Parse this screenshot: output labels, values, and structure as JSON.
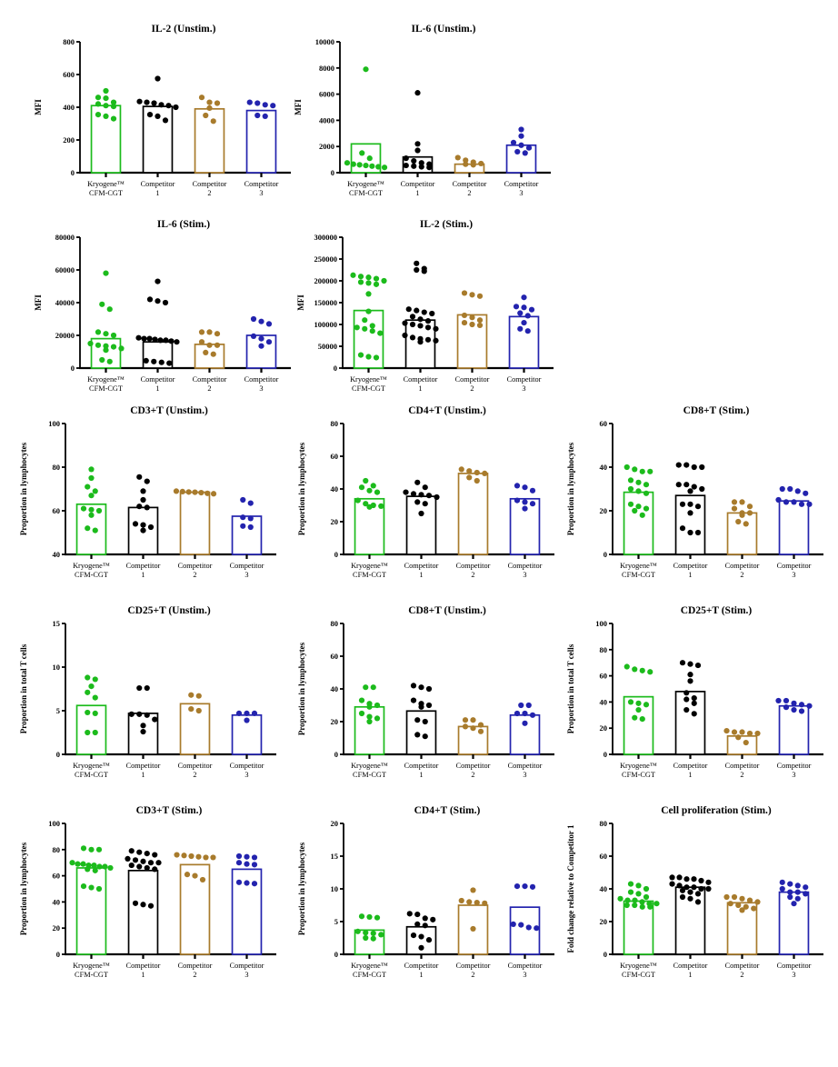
{
  "groups": {
    "categories": [
      "Kryogene™ CFM-CGT",
      "Competitor 1",
      "Competitor 2",
      "Competitor 3"
    ],
    "category_lines": [
      [
        "Kryogene™",
        "CFM-CGT"
      ],
      [
        "Competitor",
        "1"
      ],
      [
        "Competitor",
        "2"
      ],
      [
        "Competitor",
        "3"
      ]
    ],
    "colors": [
      "#1CBB1C",
      "#000000",
      "#A87B2C",
      "#2323AE"
    ]
  },
  "chart_data": [
    {
      "type": "bar",
      "overlay": "scatter",
      "title": "IL-2 (Unstim.)",
      "ylabel": "MFI",
      "ylim": [
        0,
        800
      ],
      "yticks": [
        0,
        200,
        400,
        600,
        800
      ],
      "means": [
        410,
        405,
        390,
        380
      ],
      "points": [
        [
          500,
          460,
          455,
          430,
          420,
          410,
          405,
          355,
          345,
          330
        ],
        [
          575,
          435,
          430,
          425,
          415,
          410,
          400,
          355,
          345,
          320
        ],
        [
          460,
          430,
          425,
          395,
          350,
          315
        ],
        [
          430,
          425,
          415,
          410,
          350,
          345
        ]
      ]
    },
    {
      "type": "bar",
      "overlay": "scatter",
      "title": "IL-6 (Unstim.)",
      "ylabel": "MFI",
      "ylim": [
        0,
        10000
      ],
      "yticks": [
        0,
        2000,
        4000,
        6000,
        8000,
        10000
      ],
      "means": [
        2200,
        1200,
        650,
        2100
      ],
      "points": [
        [
          7900,
          1500,
          1100,
          750,
          650,
          600,
          550,
          500,
          450,
          400
        ],
        [
          6100,
          2200,
          1700,
          1100,
          900,
          750,
          650,
          550,
          500,
          450,
          400
        ],
        [
          1150,
          950,
          800,
          700,
          650,
          600
        ],
        [
          3300,
          2800,
          2300,
          2100,
          1900,
          1600,
          1500
        ]
      ]
    },
    {
      "type": "bar",
      "overlay": "scatter",
      "title": "IL-6 (Stim.)",
      "ylabel": "MFI",
      "ylim": [
        0,
        80000
      ],
      "yticks": [
        0,
        20000,
        40000,
        60000,
        80000
      ],
      "means": [
        18000,
        16000,
        14500,
        20000
      ],
      "points": [
        [
          58000,
          39000,
          36000,
          22000,
          21000,
          20000,
          15000,
          14000,
          13500,
          13000,
          12000,
          11000,
          5000,
          4000
        ],
        [
          53000,
          42000,
          41000,
          40000,
          18500,
          18000,
          18000,
          17500,
          17000,
          17000,
          16500,
          16000,
          4500,
          4000,
          3500,
          3000
        ],
        [
          22000,
          22000,
          21000,
          16000,
          14000,
          14000,
          9500,
          8500
        ],
        [
          30000,
          28500,
          27000,
          19500,
          18000,
          16000,
          13500
        ]
      ]
    },
    {
      "type": "bar",
      "overlay": "scatter",
      "title": "IL-2 (Stim.)",
      "ylabel": "MFI",
      "ylim": [
        0,
        300000
      ],
      "yticks": [
        0,
        50000,
        100000,
        150000,
        200000,
        250000,
        300000
      ],
      "means": [
        132000,
        110000,
        122000,
        118000
      ],
      "points": [
        [
          213000,
          210000,
          208000,
          205000,
          200000,
          197000,
          195000,
          192000,
          170000,
          130000,
          110000,
          97000,
          93000,
          90000,
          85000,
          80000,
          30000,
          26000,
          24000
        ],
        [
          240000,
          228000,
          225000,
          222000,
          135000,
          132000,
          128000,
          125000,
          118000,
          112000,
          108000,
          103000,
          100000,
          97000,
          93000,
          90000,
          75000,
          70000,
          67000,
          65000,
          63000,
          60000
        ],
        [
          172000,
          168000,
          165000,
          121000,
          116000,
          110000,
          104000,
          100000,
          98000
        ],
        [
          162000,
          141000,
          139000,
          134000,
          126000,
          120000,
          104000,
          90000,
          85000
        ]
      ]
    },
    {
      "type": "bar",
      "overlay": "scatter",
      "title": "CD3+T (Unstim.)",
      "ylabel": "Proportion in lymphocytes",
      "ylim": [
        40,
        100
      ],
      "yticks": [
        40,
        60,
        80,
        100
      ],
      "means": [
        63,
        61.5,
        68.5,
        57.5
      ],
      "points": [
        [
          79,
          75,
          71,
          69,
          67,
          61,
          60.5,
          60,
          58,
          52,
          51
        ],
        [
          75.5,
          73.5,
          69,
          65,
          62,
          61.5,
          54,
          53.5,
          52.5,
          51
        ],
        [
          69,
          68.8,
          68.6,
          68.5,
          68.3,
          68,
          67.8
        ],
        [
          65,
          63.5,
          57,
          56.5,
          53,
          52.5
        ]
      ]
    },
    {
      "type": "bar",
      "overlay": "scatter",
      "title": "CD4+T (Unstim.)",
      "ylabel": "Proportion in lymphocytes",
      "ylim": [
        0,
        80
      ],
      "yticks": [
        0,
        20,
        40,
        60,
        80
      ],
      "means": [
        34,
        35.5,
        49.5,
        34
      ],
      "points": [
        [
          45,
          42,
          41,
          39,
          38,
          33,
          31,
          30,
          29.5,
          29
        ],
        [
          44,
          41,
          38,
          37,
          36.5,
          36,
          35,
          32,
          31,
          25
        ],
        [
          52,
          51,
          50,
          49.5,
          47,
          45
        ],
        [
          42,
          41,
          39,
          33,
          32,
          31,
          28
        ]
      ]
    },
    {
      "type": "bar",
      "overlay": "scatter",
      "title": "CD8+T (Stim.)",
      "ylabel": "Proportion in lymphocytes",
      "ylim": [
        0,
        60
      ],
      "yticks": [
        0,
        20,
        40,
        60
      ],
      "means": [
        28.5,
        27,
        19,
        24.5
      ],
      "points": [
        [
          40,
          39,
          38,
          38,
          34,
          33,
          32,
          30,
          29,
          28,
          23,
          22,
          21,
          20,
          18
        ],
        [
          41,
          41,
          40,
          40,
          32,
          32,
          31,
          30,
          29,
          23,
          23,
          22,
          19,
          12,
          10,
          10
        ],
        [
          24,
          24,
          22,
          21,
          19,
          19,
          18,
          15,
          14
        ],
        [
          30,
          30,
          29,
          28,
          25,
          24,
          24,
          23,
          23
        ]
      ]
    },
    {
      "type": "bar",
      "overlay": "scatter",
      "title": "CD25+T (Unstim.)",
      "ylabel": "Proportion in total T cells",
      "ylim": [
        0,
        15
      ],
      "yticks": [
        0,
        5,
        10,
        15
      ],
      "means": [
        5.6,
        4.7,
        5.8,
        4.5
      ],
      "points": [
        [
          8.8,
          8.6,
          7.8,
          7.1,
          6.5,
          4.8,
          4.7,
          2.5,
          2.5
        ],
        [
          7.6,
          7.6,
          4.6,
          4.6,
          4.5,
          4.0,
          3.3,
          2.6
        ],
        [
          6.8,
          6.7,
          5.2,
          5.0
        ],
        [
          4.7,
          4.7,
          4.7,
          3.9
        ]
      ]
    },
    {
      "type": "bar",
      "overlay": "scatter",
      "title": "CD8+T (Unstim.)",
      "ylabel": "Proportion in lymphocytes",
      "ylim": [
        0,
        80
      ],
      "yticks": [
        0,
        20,
        40,
        60,
        80
      ],
      "means": [
        29,
        26.5,
        17,
        24
      ],
      "points": [
        [
          41,
          41,
          33,
          31,
          30,
          29,
          25,
          23,
          22,
          20
        ],
        [
          42,
          41,
          40,
          33,
          31,
          30,
          29,
          21,
          20,
          12,
          11
        ],
        [
          21,
          21,
          18,
          17,
          16,
          14
        ],
        [
          30,
          30,
          25,
          25,
          24,
          19
        ]
      ]
    },
    {
      "type": "bar",
      "overlay": "scatter",
      "title": "CD25+T (Stim.)",
      "ylabel": "Proportion in total T cells",
      "ylim": [
        0,
        100
      ],
      "yticks": [
        0,
        20,
        40,
        60,
        80,
        100
      ],
      "means": [
        44,
        48,
        14,
        37
      ],
      "points": [
        [
          67,
          65,
          64,
          63,
          40,
          39,
          38,
          34,
          28,
          27
        ],
        [
          70,
          69,
          68,
          61,
          56,
          47,
          43,
          42,
          39,
          34,
          31
        ],
        [
          18,
          17,
          17,
          16,
          16,
          13,
          9
        ],
        [
          41,
          41,
          39,
          38,
          37,
          36,
          34,
          33
        ]
      ]
    },
    {
      "type": "bar",
      "overlay": "scatter",
      "title": "CD3+T (Stim.)",
      "ylabel": "Proportion in lymphocytes",
      "ylim": [
        0,
        100
      ],
      "yticks": [
        0,
        20,
        40,
        60,
        80,
        100
      ],
      "means": [
        66,
        64,
        68.5,
        65
      ],
      "points": [
        [
          81,
          80,
          80,
          70,
          69,
          69,
          68,
          68,
          67,
          67,
          66,
          65,
          64,
          52,
          51,
          50
        ],
        [
          79,
          78,
          77,
          76,
          73,
          72,
          71,
          70,
          70,
          68,
          67,
          66,
          65,
          39,
          38,
          37
        ],
        [
          76,
          75.5,
          75,
          74.5,
          74,
          74,
          61,
          60,
          57
        ],
        [
          75,
          74.5,
          74,
          70,
          69,
          68.5,
          55,
          54.5,
          54
        ]
      ]
    },
    {
      "type": "bar",
      "overlay": "scatter",
      "title": "CD4+T (Stim.)",
      "ylabel": "Proportion in lymphocytes",
      "ylim": [
        0,
        20
      ],
      "yticks": [
        0,
        5,
        10,
        15,
        20
      ],
      "means": [
        3.7,
        4.2,
        7.5,
        7.2
      ],
      "points": [
        [
          5.8,
          5.7,
          5.6,
          3.5,
          3.3,
          3.2,
          3.0,
          2.5,
          2.4
        ],
        [
          6.2,
          6.1,
          5.5,
          5.3,
          4.6,
          4.4,
          2.9,
          2.7,
          2.2,
          1.0
        ],
        [
          9.8,
          8.2,
          8.0,
          7.9,
          7.8,
          3.9
        ],
        [
          10.4,
          10.4,
          10.3,
          4.6,
          4.5,
          4.1,
          4.0
        ]
      ]
    },
    {
      "type": "bar",
      "overlay": "scatter",
      "title": "Cell proliferation (Stim.)",
      "ylabel": "Fold change relative to Competitor 1",
      "ylim": [
        0,
        80
      ],
      "yticks": [
        0,
        20,
        40,
        60,
        80
      ],
      "means": [
        32.5,
        41,
        31.5,
        38
      ],
      "points": [
        [
          43,
          42,
          40,
          38,
          37,
          35,
          34,
          33,
          33,
          32,
          31,
          31,
          30,
          30,
          29,
          29
        ],
        [
          47,
          47,
          46,
          46,
          45,
          44,
          43,
          42,
          41,
          41,
          40,
          40,
          39,
          38,
          37,
          35,
          34,
          32
        ],
        [
          35,
          35,
          34,
          33,
          32,
          31,
          30,
          29,
          28,
          27
        ],
        [
          44,
          43,
          42,
          41,
          40,
          38,
          38,
          37,
          35,
          34,
          31
        ]
      ]
    }
  ]
}
